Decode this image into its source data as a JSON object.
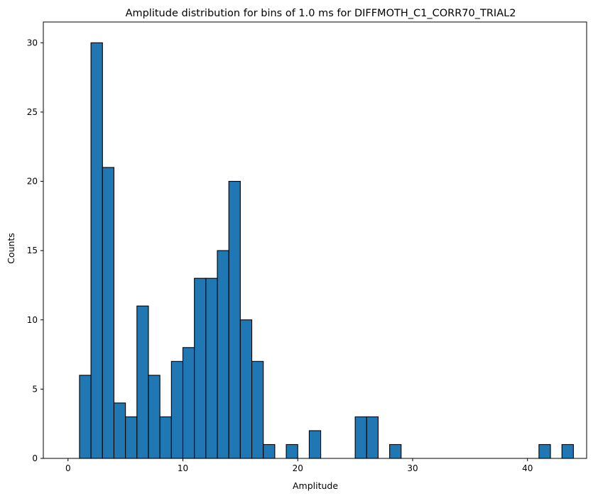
{
  "chart_data": {
    "type": "bar",
    "title": "Amplitude distribution for bins of 1.0 ms for DIFFMOTH_C1_CORR70_TRIAL2",
    "xlabel": "Amplitude",
    "ylabel": "Counts",
    "xlim": [
      -2.15,
      45.15
    ],
    "ylim": [
      0,
      31.5
    ],
    "xticks": [
      0,
      10,
      20,
      30,
      40
    ],
    "yticks": [
      0,
      5,
      10,
      15,
      20,
      25,
      30
    ],
    "bin_width": 1.0,
    "bins": [
      {
        "start": 1,
        "count": 6
      },
      {
        "start": 2,
        "count": 30
      },
      {
        "start": 3,
        "count": 21
      },
      {
        "start": 4,
        "count": 4
      },
      {
        "start": 5,
        "count": 3
      },
      {
        "start": 6,
        "count": 11
      },
      {
        "start": 7,
        "count": 6
      },
      {
        "start": 8,
        "count": 3
      },
      {
        "start": 9,
        "count": 7
      },
      {
        "start": 10,
        "count": 8
      },
      {
        "start": 11,
        "count": 13
      },
      {
        "start": 12,
        "count": 13
      },
      {
        "start": 13,
        "count": 15
      },
      {
        "start": 14,
        "count": 20
      },
      {
        "start": 15,
        "count": 10
      },
      {
        "start": 16,
        "count": 7
      },
      {
        "start": 17,
        "count": 1
      },
      {
        "start": 19,
        "count": 1
      },
      {
        "start": 21,
        "count": 2
      },
      {
        "start": 25,
        "count": 3
      },
      {
        "start": 26,
        "count": 3
      },
      {
        "start": 28,
        "count": 1
      },
      {
        "start": 41,
        "count": 1
      },
      {
        "start": 43,
        "count": 1
      }
    ],
    "baseline_range": [
      0,
      44
    ],
    "bar_color": "#1f77b4",
    "edge_color": "#000000",
    "grid": false,
    "legend": "none"
  }
}
